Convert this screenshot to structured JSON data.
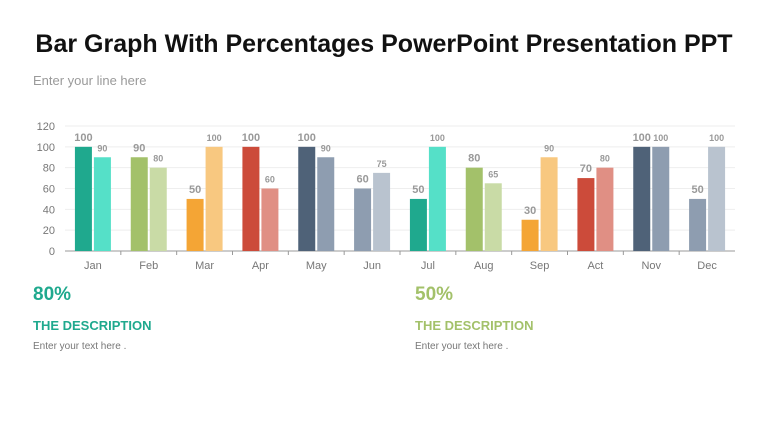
{
  "title": "Bar Graph With Percentages PowerPoint Presentation PPT",
  "subtitle": "Enter your   line here",
  "chart_data": {
    "type": "bar",
    "categories": [
      "Jan",
      "Feb",
      "Mar",
      "Apr",
      "May",
      "Jun",
      "Jul",
      "Aug",
      "Sep",
      "Act",
      "Nov",
      "Dec"
    ],
    "series": [
      {
        "values": [
          100,
          90,
          50,
          100,
          100,
          60,
          50,
          80,
          30,
          70,
          100,
          50
        ]
      },
      {
        "values": [
          90,
          80,
          100,
          60,
          90,
          75,
          100,
          65,
          90,
          80,
          100,
          100
        ]
      }
    ],
    "ylim": [
      0,
      120
    ],
    "yticks": [
      0,
      20,
      40,
      60,
      80,
      100,
      120
    ],
    "grid": true,
    "colors": [
      [
        "#1fa98e",
        "#55e0c8"
      ],
      [
        "#a3c16a",
        "#c9dba6"
      ],
      [
        "#f4a535",
        "#f8c880"
      ],
      [
        "#cc4b3a",
        "#e08f84"
      ],
      [
        "#4f6278",
        "#8e9db0"
      ],
      [
        "#8e9db0",
        "#b9c3cf"
      ],
      [
        "#1fa98e",
        "#55e0c8"
      ],
      [
        "#a3c16a",
        "#c9dba6"
      ],
      [
        "#f4a535",
        "#f8c880"
      ],
      [
        "#cc4b3a",
        "#e08f84"
      ],
      [
        "#4f6278",
        "#8e9db0"
      ],
      [
        "#8e9db0",
        "#b9c3cf"
      ]
    ]
  },
  "left": {
    "percent": "80%",
    "heading": "THE DESCRIPTION",
    "text": "Enter your text here .",
    "color": "#1fa98e"
  },
  "right": {
    "percent": "50%",
    "heading": "THE DESCRIPTION",
    "text": "Enter your text here .",
    "color": "#a3c16a"
  }
}
